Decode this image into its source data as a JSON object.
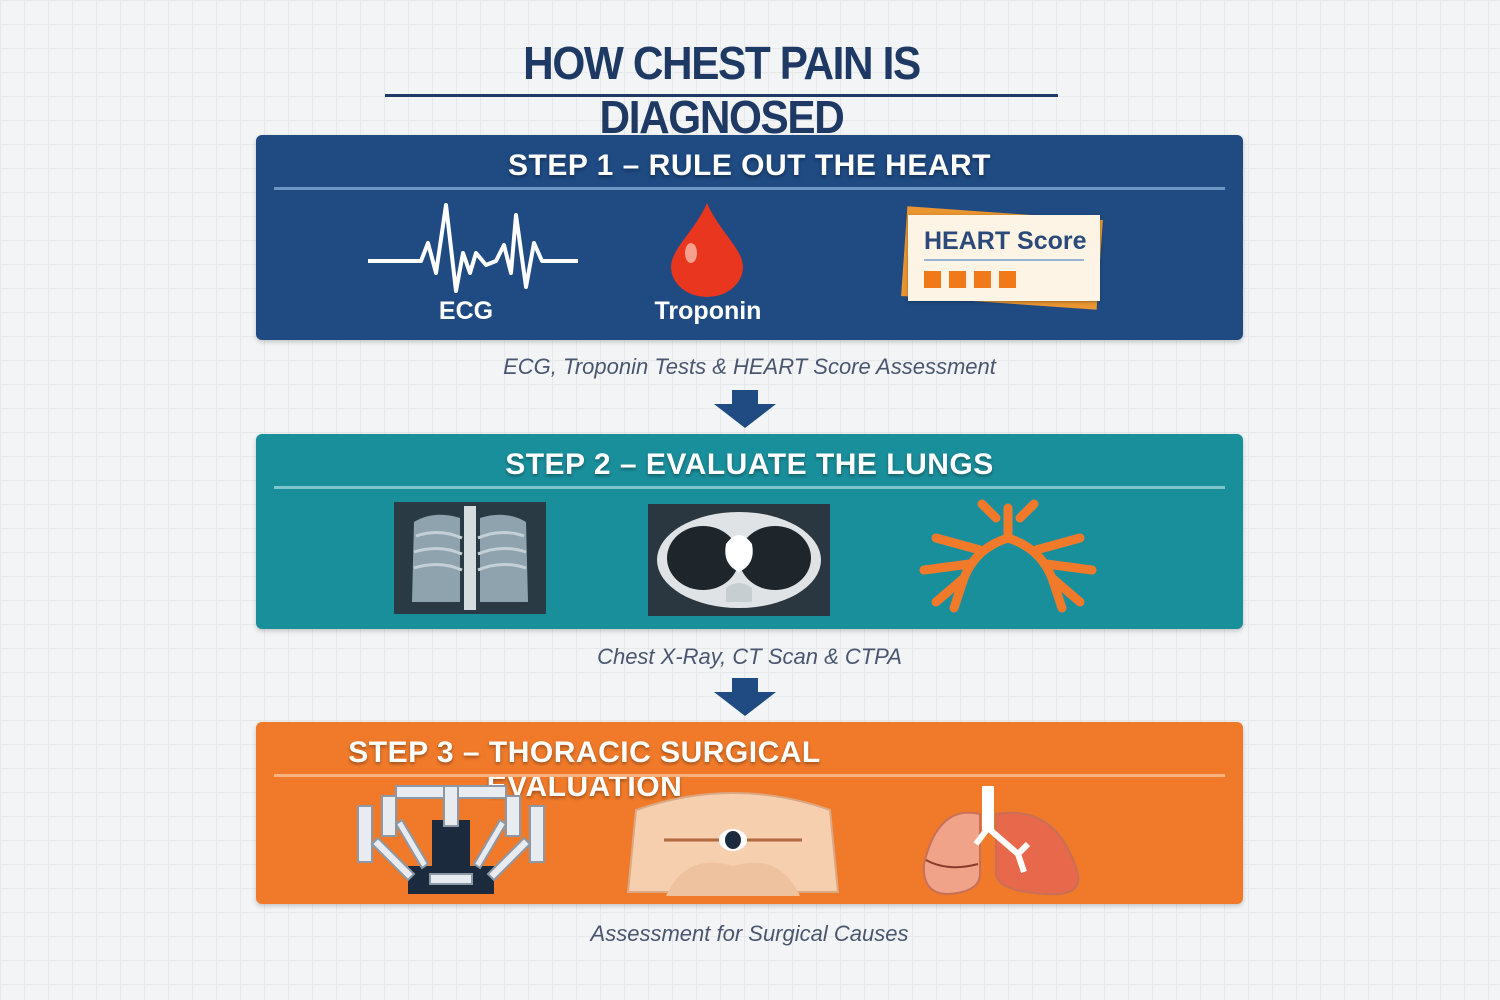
{
  "title": "HOW CHEST PAIN IS DIAGNOSED",
  "colors": {
    "title": "#1e3a64",
    "step1": "#1f4a82",
    "step2": "#1a8f9c",
    "step3": "#f07a2a",
    "arrow": "#1f4a82"
  },
  "steps": [
    {
      "heading": "STEP 1 – RULE OUT THE HEART",
      "icons": [
        "ecg-icon",
        "blood-drop-icon",
        "score-card-icon"
      ],
      "labels": {
        "ecg": "ECG",
        "troponin": "Troponin",
        "card": "HEART Score"
      },
      "caption": "ECG, Troponin Tests & HEART Score Assessment"
    },
    {
      "heading": "STEP 2 – EVALUATE THE LUNGS",
      "icons": [
        "chest-xray-icon",
        "ct-scan-icon",
        "pulmonary-arteries-icon"
      ],
      "caption": "Chest X-Ray, CT Scan & CTPA"
    },
    {
      "heading": "STEP 3 – THORACIC SURGICAL EVALUATION",
      "icons": [
        "surgical-robot-icon",
        "chest-incision-icon",
        "lungs-icon"
      ],
      "caption": "Assessment for Surgical Causes"
    }
  ]
}
